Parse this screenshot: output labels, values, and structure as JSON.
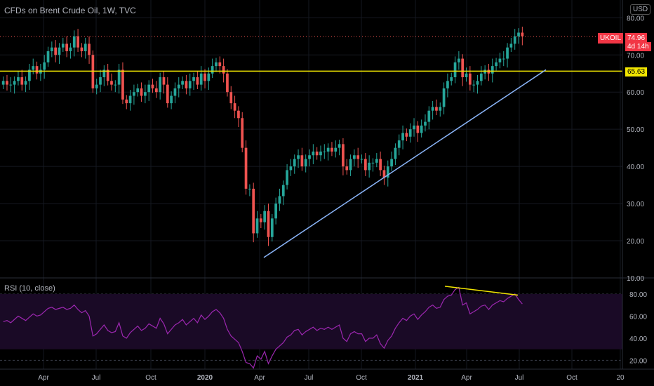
{
  "header": {
    "title": "CFDs on Brent Crude Oil, 1W, TVC",
    "currency": "USD"
  },
  "price_tag": {
    "ticker": "UKOIL",
    "value": "74.96",
    "time_left": "4d 14h"
  },
  "horizontal_level": {
    "label": "65.63",
    "value": 65.63
  },
  "rsi_panel": {
    "title": "RSI (10, close)"
  },
  "colors": {
    "up": "#26a69a",
    "down": "#ef5350",
    "level": "#f2e600",
    "trendline": "#8ab4f8",
    "rsi": "#9c27b0",
    "rsi_band": "#1a0a26",
    "rsi_divergence": "#f2e600"
  },
  "chart_data": [
    {
      "type": "candlestick",
      "title": "CFDs on Brent Crude Oil, 1W, TVC",
      "y_axis": {
        "ticks": [
          10,
          20,
          30,
          40,
          50,
          60,
          70,
          80
        ],
        "tick_labels": [
          "10.00",
          "20.00",
          "30.00",
          "40.00",
          "50.00",
          "60.00",
          "70.00",
          "80.00"
        ],
        "range": [
          10,
          81
        ]
      },
      "x_axis": {
        "tick_labels": [
          "Apr",
          "Jul",
          "Oct",
          "2020",
          "Apr",
          "Jul",
          "Oct",
          "2021",
          "Apr",
          "Jul",
          "Oct",
          "20"
        ]
      },
      "series": [
        {
          "close": [
            63,
            62,
            62,
            63,
            64,
            62,
            63,
            66,
            67,
            65,
            66,
            68,
            71,
            72,
            70,
            72,
            73,
            71,
            72,
            75,
            72,
            71,
            73,
            70,
            61,
            62,
            64,
            66,
            63,
            62,
            62,
            66,
            58,
            57,
            59,
            60,
            61,
            59,
            60,
            62,
            61,
            60,
            64,
            62,
            57,
            59,
            61,
            62,
            63,
            61,
            63,
            64,
            62,
            65,
            63,
            65,
            67,
            68,
            67,
            65,
            60,
            57,
            55,
            53,
            45,
            34,
            34,
            22,
            26,
            25,
            28,
            21,
            26,
            30,
            32,
            35,
            39,
            40,
            42,
            43,
            40,
            42,
            43,
            44,
            43,
            44,
            44,
            45,
            44,
            45,
            46,
            40,
            39,
            42,
            43,
            42,
            42,
            39,
            41,
            41,
            42,
            39,
            37,
            40,
            42,
            45,
            47,
            49,
            48,
            50,
            51,
            49,
            51,
            52,
            55,
            56,
            55,
            56,
            61,
            63,
            64,
            68,
            69,
            64,
            65,
            62,
            62,
            63,
            65,
            66,
            65,
            67,
            68,
            69,
            69,
            72,
            73,
            75,
            76,
            75
          ]
        },
        {
          "name": "",
          "values": []
        }
      ],
      "annotations": {
        "horizontal_line": 65.63,
        "trendline_from": [
          15.5,
          "2020-Apr"
        ],
        "trendline_to": [
          66,
          "2021-Jul"
        ]
      }
    },
    {
      "type": "line",
      "title": "RSI (10, close)",
      "y_axis": {
        "ticks": [
          20,
          40,
          60,
          80
        ],
        "tick_labels": [
          "20.00",
          "40.00",
          "60.00",
          "80.00"
        ],
        "range": [
          12,
          92
        ]
      },
      "band": [
        30,
        80
      ],
      "values": [
        55,
        56,
        54,
        57,
        60,
        58,
        56,
        59,
        62,
        60,
        61,
        64,
        67,
        68,
        66,
        67,
        68,
        66,
        67,
        70,
        66,
        63,
        65,
        60,
        42,
        44,
        48,
        52,
        47,
        45,
        46,
        54,
        42,
        40,
        45,
        48,
        51,
        47,
        49,
        53,
        51,
        49,
        58,
        53,
        44,
        48,
        52,
        54,
        57,
        52,
        55,
        58,
        54,
        61,
        57,
        60,
        64,
        66,
        63,
        58,
        48,
        42,
        39,
        36,
        28,
        18,
        17,
        13,
        24,
        21,
        28,
        17,
        24,
        30,
        33,
        36,
        41,
        43,
        47,
        48,
        43,
        46,
        48,
        50,
        47,
        49,
        48,
        50,
        48,
        50,
        52,
        40,
        37,
        44,
        46,
        44,
        44,
        37,
        40,
        40,
        43,
        35,
        31,
        38,
        42,
        49,
        54,
        58,
        56,
        60,
        62,
        57,
        61,
        64,
        68,
        70,
        67,
        68,
        75,
        78,
        79,
        84,
        86,
        70,
        72,
        62,
        64,
        66,
        69,
        70,
        66,
        70,
        72,
        74,
        73,
        76,
        78,
        80,
        75,
        71
      ],
      "divergence_line": {
        "from": 87,
        "to": 79
      }
    }
  ]
}
